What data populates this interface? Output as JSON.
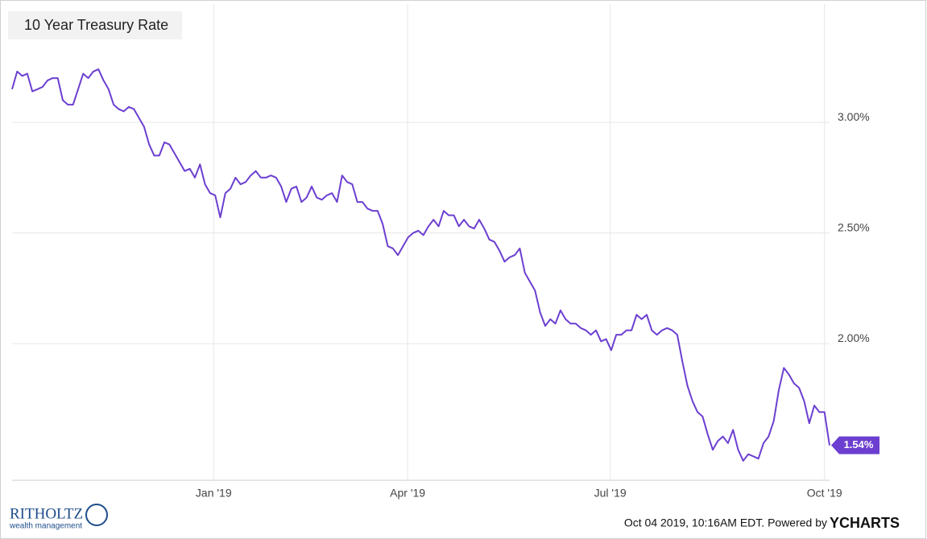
{
  "chart_data": {
    "type": "line",
    "title": "10 Year Treasury Rate",
    "color": "#6c3fd0",
    "grid": true,
    "values": [
      3.15,
      3.23,
      3.21,
      3.22,
      3.14,
      3.15,
      3.16,
      3.19,
      3.2,
      3.2,
      3.1,
      3.08,
      3.08,
      3.15,
      3.22,
      3.2,
      3.23,
      3.24,
      3.19,
      3.15,
      3.08,
      3.06,
      3.05,
      3.07,
      3.06,
      3.02,
      2.98,
      2.9,
      2.85,
      2.85,
      2.91,
      2.9,
      2.86,
      2.82,
      2.78,
      2.79,
      2.75,
      2.81,
      2.72,
      2.68,
      2.67,
      2.57,
      2.68,
      2.7,
      2.75,
      2.72,
      2.73,
      2.76,
      2.78,
      2.75,
      2.75,
      2.76,
      2.75,
      2.71,
      2.64,
      2.7,
      2.71,
      2.64,
      2.66,
      2.71,
      2.66,
      2.65,
      2.67,
      2.68,
      2.64,
      2.76,
      2.73,
      2.72,
      2.64,
      2.64,
      2.61,
      2.6,
      2.6,
      2.54,
      2.44,
      2.43,
      2.4,
      2.44,
      2.48,
      2.5,
      2.51,
      2.49,
      2.53,
      2.56,
      2.53,
      2.6,
      2.58,
      2.58,
      2.53,
      2.56,
      2.53,
      2.52,
      2.56,
      2.52,
      2.47,
      2.46,
      2.42,
      2.37,
      2.39,
      2.4,
      2.43,
      2.32,
      2.28,
      2.24,
      2.14,
      2.08,
      2.11,
      2.09,
      2.15,
      2.11,
      2.09,
      2.09,
      2.07,
      2.06,
      2.04,
      2.06,
      2.01,
      2.02,
      1.97,
      2.04,
      2.04,
      2.06,
      2.06,
      2.13,
      2.11,
      2.13,
      2.06,
      2.04,
      2.06,
      2.07,
      2.06,
      2.04,
      1.92,
      1.81,
      1.74,
      1.69,
      1.67,
      1.59,
      1.52,
      1.56,
      1.58,
      1.55,
      1.61,
      1.52,
      1.47,
      1.5,
      1.49,
      1.48,
      1.55,
      1.58,
      1.65,
      1.79,
      1.89,
      1.86,
      1.82,
      1.8,
      1.74,
      1.64,
      1.72,
      1.69,
      1.69,
      1.54
    ],
    "current_value_label": "1.54%",
    "xlim": [
      0,
      161
    ],
    "xticks": [
      {
        "value": 39.7,
        "label": "Jan '19"
      },
      {
        "value": 77.9,
        "label": "Apr '19"
      },
      {
        "value": 117.8,
        "label": "Jul '19"
      },
      {
        "value": 160,
        "label": "Oct '19"
      }
    ],
    "ylim": [
      1.382,
      3.535
    ],
    "yticks": [
      {
        "value": 2,
        "label": "2.00%"
      },
      {
        "value": 2.5,
        "label": "2.50%"
      },
      {
        "value": 3,
        "label": "3.00%"
      }
    ]
  },
  "footer": {
    "logo": "RITHOLTZ",
    "logo_sub": "wealth management",
    "timestamp": "Oct 04 2019, 10:16AM EDT. Powered by",
    "brand": "YCHARTS"
  }
}
